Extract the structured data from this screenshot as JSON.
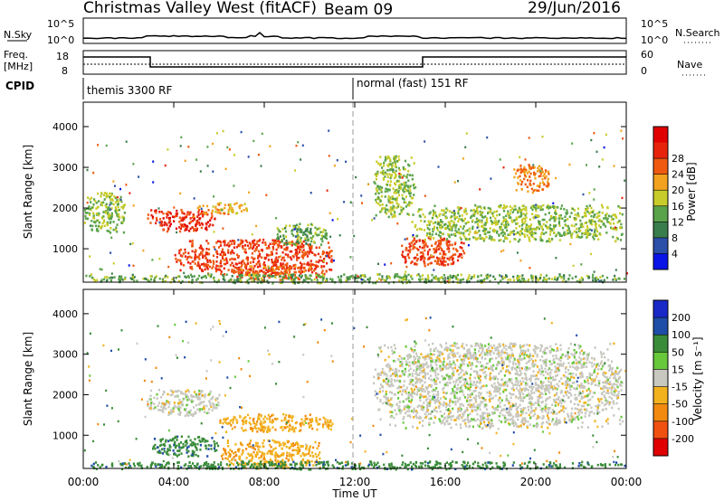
{
  "header": {
    "title": "Christmas Valley West (fitACF)",
    "beam": "Beam 09",
    "date": "29/Jun/2016"
  },
  "strips": {
    "nsky_label": "N.Sky",
    "nsky_top": "10^5",
    "nsky_bottom": "10^0",
    "nsearch_label": "N.Search",
    "nsearch_top": "10^5",
    "nsearch_bottom": "10^0",
    "freq_label_1": "Freq.",
    "freq_label_2": "[MHz]",
    "freq_top": "18",
    "freq_bottom": "8",
    "nave_top": "60",
    "nave_bottom": "0",
    "nave_label": "Nave",
    "cpid_label": "CPID",
    "cpid_1": "themis 3300 RF",
    "cpid_2": "normal (fast) 151 RF"
  },
  "chart_data": [
    {
      "type": "heatmap",
      "name": "power",
      "ylabel": "Slant Range [km]",
      "xlim": [
        0,
        24
      ],
      "ylim": [
        180,
        4600
      ],
      "yticks": [
        "1000",
        "2000",
        "3000",
        "4000"
      ],
      "colorbar_label": "Power [dB]",
      "colorbar_ticks": [
        "4",
        "8",
        "12",
        "16",
        "20",
        "24",
        "28"
      ],
      "colorbar_colors": [
        "#0a14e6",
        "#2c4fa8",
        "#3a7d4c",
        "#5aa34a",
        "#c8cc2a",
        "#f2a21e",
        "#ef5a10",
        "#e8230c",
        "#e00000"
      ],
      "features": [
        {
          "x": [
            2.8,
            5.8
          ],
          "y": [
            1450,
            2000
          ],
          "level": 28
        },
        {
          "x": [
            5.0,
            7.2
          ],
          "y": [
            1850,
            2150
          ],
          "level": 20
        },
        {
          "x": [
            4.0,
            11.0
          ],
          "y": [
            380,
            1250
          ],
          "level": 26
        },
        {
          "x": [
            6.5,
            10.8
          ],
          "y": [
            250,
            600
          ],
          "level": 24
        },
        {
          "x": [
            8.5,
            10.8
          ],
          "y": [
            1100,
            1650
          ],
          "level": 12
        },
        {
          "x": [
            0.0,
            1.8
          ],
          "y": [
            1400,
            2400
          ],
          "level": 14
        },
        {
          "x": [
            12.8,
            14.6
          ],
          "y": [
            1800,
            3300
          ],
          "level": 14
        },
        {
          "x": [
            14.0,
            16.8
          ],
          "y": [
            600,
            1300
          ],
          "level": 26
        },
        {
          "x": [
            14.5,
            23.8
          ],
          "y": [
            1200,
            2100
          ],
          "level": 14
        },
        {
          "x": [
            19.0,
            20.6
          ],
          "y": [
            2400,
            3100
          ],
          "level": 22
        },
        {
          "x": [
            0.0,
            24.0
          ],
          "y": [
            180,
            400
          ],
          "level": 12
        }
      ]
    },
    {
      "type": "heatmap",
      "name": "velocity",
      "ylabel": "Slant Range [km]",
      "xlabel": "Time UT",
      "xlim": [
        0,
        24
      ],
      "ylim": [
        180,
        4600
      ],
      "yticks": [
        "1000",
        "2000",
        "3000",
        "4000"
      ],
      "xticks": [
        "00:00",
        "04:00",
        "08:00",
        "12:00",
        "16:00",
        "20:00",
        "00:00"
      ],
      "colorbar_label": "Velocity [m s⁻¹]",
      "colorbar_ticks": [
        "200",
        "100",
        "50",
        "15",
        "-15",
        "-50",
        "-100",
        "-200"
      ],
      "colorbar_colors": [
        "#1a28c8",
        "#1f4ea8",
        "#3a8c3a",
        "#66c83a",
        "#c8c8c0",
        "#f2b21e",
        "#f28a10",
        "#f05010",
        "#e00000"
      ],
      "features": [
        {
          "x": [
            2.8,
            6.0
          ],
          "y": [
            1500,
            2150
          ],
          "velocity": 0
        },
        {
          "x": [
            6.0,
            11.0
          ],
          "y": [
            1100,
            1550
          ],
          "velocity": -40
        },
        {
          "x": [
            3.0,
            6.0
          ],
          "y": [
            500,
            1000
          ],
          "velocity": 60
        },
        {
          "x": [
            6.0,
            10.5
          ],
          "y": [
            200,
            900
          ],
          "velocity": -40
        },
        {
          "x": [
            12.8,
            23.8
          ],
          "y": [
            1200,
            3300
          ],
          "velocity": 0
        },
        {
          "x": [
            0.0,
            24.0
          ],
          "y": [
            180,
            380
          ],
          "velocity": 60
        }
      ]
    }
  ]
}
